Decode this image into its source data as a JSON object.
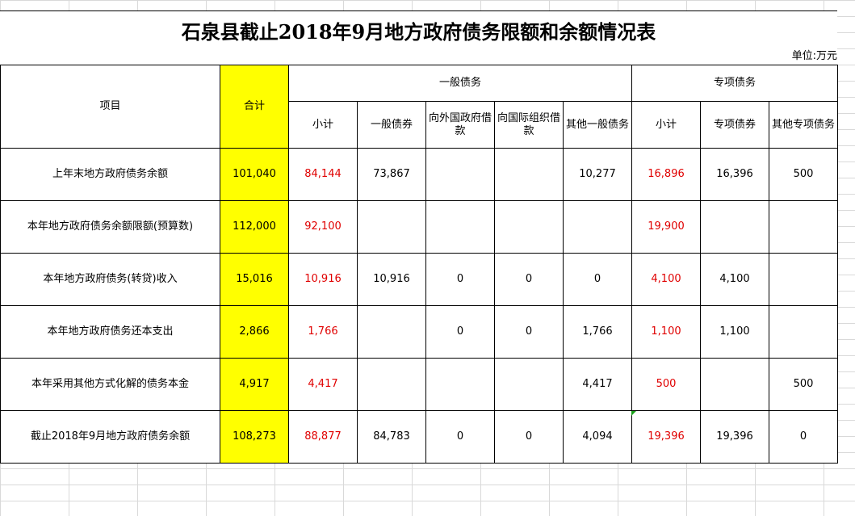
{
  "title": "石泉县截止2018年9月地方政府债务限额和余额情况表",
  "unit": "单位:万元",
  "headers": {
    "item": "项目",
    "total": "合计",
    "general_group": "一般债务",
    "special_group": "专项债务",
    "general": [
      "小计",
      "一般债券",
      "向外国政府借款",
      "向国际组织借款",
      "其他一般债务"
    ],
    "special": [
      "小计",
      "专项债券",
      "其他专项债务"
    ]
  },
  "rows": [
    {
      "label": "上年末地方政府债务余额",
      "cells": [
        "101,040",
        "84,144",
        "73,867",
        "",
        "",
        "10,277",
        "16,896",
        "16,396",
        "500"
      ]
    },
    {
      "label": "本年地方政府债务余额限额(预算数)",
      "cells": [
        "112,000",
        "92,100",
        "",
        "",
        "",
        "",
        "19,900",
        "",
        ""
      ]
    },
    {
      "label": "本年地方政府债务(转贷)收入",
      "cells": [
        "15,016",
        "10,916",
        "10,916",
        "0",
        "0",
        "0",
        "4,100",
        "4,100",
        ""
      ]
    },
    {
      "label": "本年地方政府债务还本支出",
      "cells": [
        "2,866",
        "1,766",
        "",
        "0",
        "0",
        "1,766",
        "1,100",
        "1,100",
        ""
      ]
    },
    {
      "label": "本年采用其他方式化解的债务本金",
      "cells": [
        "4,917",
        "4,417",
        "",
        "",
        "",
        "4,417",
        "500",
        "",
        "500"
      ]
    },
    {
      "label": "截止2018年9月地方政府债务余额",
      "cells": [
        "108,273",
        "88,877",
        "84,783",
        "0",
        "0",
        "4,094",
        "19,396",
        "19,396",
        "0"
      ]
    }
  ],
  "colors": {
    "highlight": "#ffff00",
    "subtotal_text": "#e00000"
  }
}
